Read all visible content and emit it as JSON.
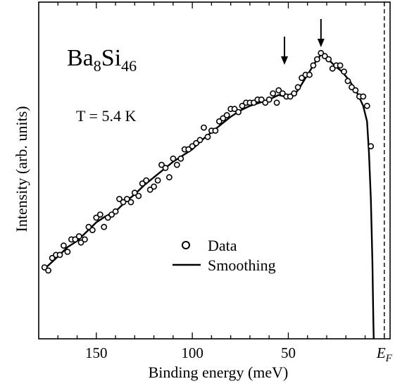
{
  "chart_data": {
    "type": "scatter",
    "compound": {
      "base1": "Ba",
      "sub1": "8",
      "base2": "Si",
      "sub2": "46"
    },
    "temperature": "T = 5.4 K",
    "xlabel": "Binding energy (meV)",
    "ylabel": "Intensity (arb. units)",
    "x_reversed": true,
    "xlim": [
      180,
      -3
    ],
    "ylim": [
      0,
      1
    ],
    "xticks": [
      150,
      100,
      50
    ],
    "xtick_labels": [
      "150",
      "100",
      "50"
    ],
    "fermi_label": {
      "base": "E",
      "sub": "F"
    },
    "fermi_x": 0,
    "arrows_x": [
      52,
      33
    ],
    "legend": {
      "entries": [
        "Data",
        "Smoothing"
      ],
      "placement": "center"
    },
    "series": [
      {
        "name": "Data",
        "marker": "open-circle",
        "points": [
          [
            177,
            0.23
          ],
          [
            175,
            0.22
          ],
          [
            173,
            0.26
          ],
          [
            171,
            0.27
          ],
          [
            169,
            0.27
          ],
          [
            167,
            0.3
          ],
          [
            165,
            0.28
          ],
          [
            163,
            0.32
          ],
          [
            161,
            0.32
          ],
          [
            159,
            0.33
          ],
          [
            158,
            0.31
          ],
          [
            156,
            0.32
          ],
          [
            154,
            0.36
          ],
          [
            152,
            0.35
          ],
          [
            150,
            0.39
          ],
          [
            148,
            0.4
          ],
          [
            146,
            0.36
          ],
          [
            144,
            0.39
          ],
          [
            142,
            0.4
          ],
          [
            140,
            0.41
          ],
          [
            138,
            0.45
          ],
          [
            136,
            0.44
          ],
          [
            134,
            0.45
          ],
          [
            132,
            0.44
          ],
          [
            130,
            0.47
          ],
          [
            128,
            0.46
          ],
          [
            126,
            0.5
          ],
          [
            124,
            0.51
          ],
          [
            122,
            0.48
          ],
          [
            120,
            0.49
          ],
          [
            118,
            0.51
          ],
          [
            116,
            0.56
          ],
          [
            114,
            0.55
          ],
          [
            112,
            0.52
          ],
          [
            110,
            0.58
          ],
          [
            108,
            0.56
          ],
          [
            106,
            0.58
          ],
          [
            104,
            0.61
          ],
          [
            102,
            0.61
          ],
          [
            100,
            0.62
          ],
          [
            98,
            0.63
          ],
          [
            96,
            0.64
          ],
          [
            94,
            0.68
          ],
          [
            92,
            0.65
          ],
          [
            90,
            0.67
          ],
          [
            88,
            0.67
          ],
          [
            86,
            0.7
          ],
          [
            84,
            0.71
          ],
          [
            82,
            0.72
          ],
          [
            80,
            0.74
          ],
          [
            78,
            0.74
          ],
          [
            76,
            0.73
          ],
          [
            74,
            0.75
          ],
          [
            72,
            0.76
          ],
          [
            70,
            0.76
          ],
          [
            68,
            0.76
          ],
          [
            66,
            0.77
          ],
          [
            64,
            0.77
          ],
          [
            62,
            0.76
          ],
          [
            60,
            0.77
          ],
          [
            58,
            0.79
          ],
          [
            56,
            0.76
          ],
          [
            55,
            0.8
          ],
          [
            53,
            0.79
          ],
          [
            51,
            0.78
          ],
          [
            49,
            0.78
          ],
          [
            47,
            0.79
          ],
          [
            45,
            0.81
          ],
          [
            43,
            0.84
          ],
          [
            41,
            0.85
          ],
          [
            39,
            0.85
          ],
          [
            37,
            0.88
          ],
          [
            35,
            0.9
          ],
          [
            33,
            0.92
          ],
          [
            31,
            0.91
          ],
          [
            29,
            0.9
          ],
          [
            27,
            0.87
          ],
          [
            25,
            0.88
          ],
          [
            23,
            0.88
          ],
          [
            21,
            0.86
          ],
          [
            19,
            0.83
          ],
          [
            17,
            0.81
          ],
          [
            15,
            0.8
          ],
          [
            13,
            0.78
          ],
          [
            11,
            0.78
          ],
          [
            9,
            0.75
          ],
          [
            7,
            0.62
          ]
        ]
      },
      {
        "name": "Smoothing",
        "marker": "line",
        "points": [
          [
            177,
            0.225
          ],
          [
            170,
            0.265
          ],
          [
            165,
            0.295
          ],
          [
            160,
            0.315
          ],
          [
            155,
            0.345
          ],
          [
            150,
            0.375
          ],
          [
            145,
            0.395
          ],
          [
            140,
            0.41
          ],
          [
            135,
            0.44
          ],
          [
            130,
            0.465
          ],
          [
            125,
            0.495
          ],
          [
            120,
            0.52
          ],
          [
            115,
            0.545
          ],
          [
            110,
            0.57
          ],
          [
            105,
            0.59
          ],
          [
            100,
            0.61
          ],
          [
            95,
            0.64
          ],
          [
            90,
            0.665
          ],
          [
            85,
            0.69
          ],
          [
            80,
            0.715
          ],
          [
            75,
            0.735
          ],
          [
            70,
            0.75
          ],
          [
            65,
            0.76
          ],
          [
            60,
            0.77
          ],
          [
            55,
            0.785
          ],
          [
            52,
            0.78
          ],
          [
            48,
            0.78
          ],
          [
            45,
            0.8
          ],
          [
            42,
            0.83
          ],
          [
            39,
            0.86
          ],
          [
            36,
            0.89
          ],
          [
            33,
            0.915
          ],
          [
            30,
            0.905
          ],
          [
            26,
            0.88
          ],
          [
            22,
            0.86
          ],
          [
            18,
            0.83
          ],
          [
            14,
            0.79
          ],
          [
            11,
            0.75
          ],
          [
            9,
            0.7
          ],
          [
            8,
            0.6
          ],
          [
            7,
            0.45
          ],
          [
            6.2,
            0.25
          ],
          [
            5.7,
            0.05
          ],
          [
            5.5,
            0.0
          ]
        ]
      }
    ]
  }
}
